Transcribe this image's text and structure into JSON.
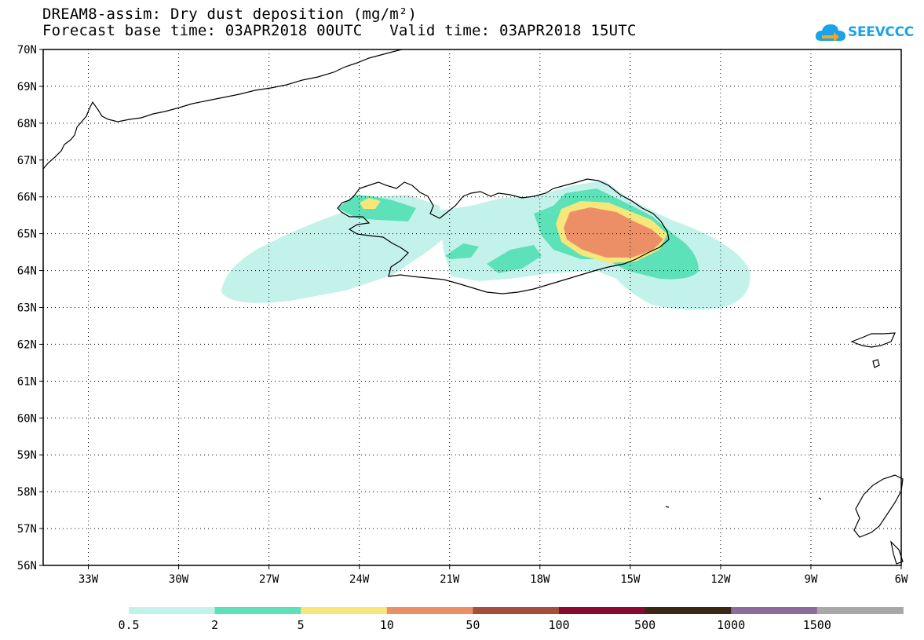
{
  "title": {
    "line1": "DREAM8-assim: Dry dust deposition (mg/m²)",
    "line2": "Forecast base time: 03APR2018 00UTC   Valid time: 03APR2018 15UTC"
  },
  "logo": {
    "text": "SEEVCCC",
    "icon": "cloud-arrow-icon",
    "color": "#1aa3e8"
  },
  "map": {
    "lon_range": [
      -34.5,
      -6
    ],
    "lat_range": [
      56,
      70
    ],
    "lon_ticks": [
      "33W",
      "30W",
      "27W",
      "24W",
      "21W",
      "18W",
      "15W",
      "12W",
      "9W",
      "6W"
    ],
    "lat_ticks": [
      "70N",
      "69N",
      "68N",
      "67N",
      "66N",
      "65N",
      "64N",
      "63N",
      "62N",
      "61N",
      "60N",
      "59N",
      "58N",
      "57N",
      "56N"
    ],
    "gridlines": "dotted"
  },
  "colorbar": {
    "labels": [
      "0.5",
      "2",
      "5",
      "10",
      "50",
      "100",
      "500",
      "1000",
      "1500"
    ],
    "colors": [
      "#c3f2ea",
      "#5ce1b9",
      "#f6e77a",
      "#ed8f66",
      "#a64d3e",
      "#880a2e",
      "#3b2716",
      "#8d6b9c",
      "#a8a8a8"
    ]
  },
  "chart_data": {
    "type": "heatmap",
    "title": "DREAM8-assim: Dry dust deposition (mg/m²)",
    "subtitle": "Forecast base time: 03APR2018 00UTC   Valid time: 03APR2018 15UTC",
    "xlim": [
      -34.5,
      -6
    ],
    "ylim": [
      56,
      70
    ],
    "levels": [
      0.5,
      2,
      5,
      10,
      50,
      100,
      500,
      1000,
      1500
    ],
    "regions": [
      {
        "name": "west plume",
        "level_min": 0.5,
        "center_lon": -26,
        "center_lat": 64.2
      },
      {
        "name": "east plume",
        "level_min": 0.5,
        "center_lon": -13.5,
        "center_lat": 63.9
      },
      {
        "name": "NE Iceland core",
        "level_min": 10,
        "center_lon": -15.8,
        "center_lat": 64.9
      },
      {
        "name": "Westfjords",
        "level_min": 5,
        "center_lon": -23.3,
        "center_lat": 65.9
      }
    ]
  }
}
